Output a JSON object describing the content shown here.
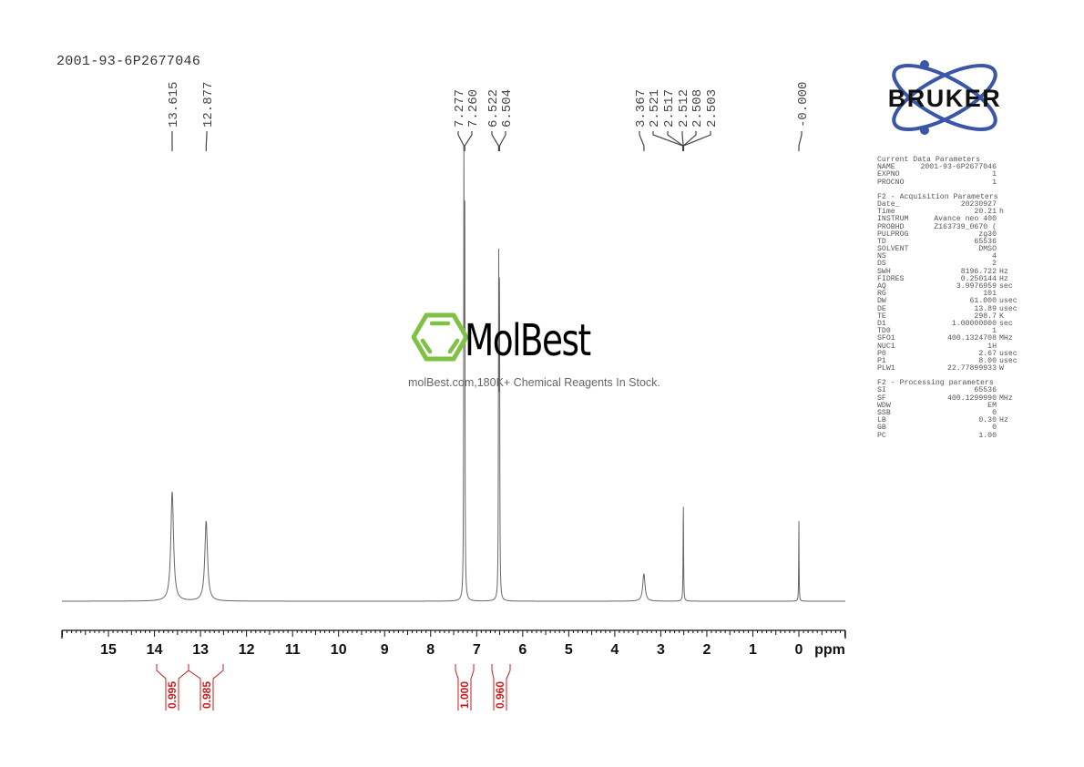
{
  "header": {
    "sample_name": "2001-93-6P2677046"
  },
  "peak_labels": [
    {
      "text": "13.615",
      "ppm": 13.615
    },
    {
      "text": "12.877",
      "ppm": 12.877
    },
    {
      "text": "7.277",
      "ppm": 7.277
    },
    {
      "text": "7.260",
      "ppm": 7.26
    },
    {
      "text": "6.522",
      "ppm": 6.522
    },
    {
      "text": "6.504",
      "ppm": 6.504
    },
    {
      "text": "3.367",
      "ppm": 3.367
    },
    {
      "text": "2.521",
      "ppm": 2.521
    },
    {
      "text": "2.517",
      "ppm": 2.517
    },
    {
      "text": "2.512",
      "ppm": 2.512
    },
    {
      "text": "2.508",
      "ppm": 2.508
    },
    {
      "text": "2.503",
      "ppm": 2.503
    },
    {
      "text": "-0.000",
      "ppm": 0.0
    }
  ],
  "axis": {
    "unit_label": "ppm",
    "ticks": [
      "15",
      "14",
      "13",
      "12",
      "11",
      "10",
      "9",
      "8",
      "7",
      "6",
      "5",
      "4",
      "3",
      "2",
      "1",
      "0"
    ]
  },
  "integrals": [
    {
      "value": "0.995",
      "from": 13.9,
      "to": 13.25
    },
    {
      "value": "0.985",
      "from": 13.25,
      "to": 12.45
    },
    {
      "value": "1.000",
      "from": 7.55,
      "to": 7.0
    },
    {
      "value": "0.960",
      "from": 6.75,
      "to": 6.3
    }
  ],
  "watermark": {
    "brand": "MolBest",
    "tagline": "molBest.com,180K+ Chemical Reagents In Stock.",
    "logo_color": "#7dc242"
  },
  "logo": {
    "text": "BRUKER",
    "orbit_color": "#3a57a7"
  },
  "parameters": {
    "current": {
      "title": "Current Data Parameters",
      "rows": [
        {
          "key": "NAME",
          "value": "2001-93-6P2677046",
          "unit": ""
        },
        {
          "key": "EXPNO",
          "value": "1",
          "unit": ""
        },
        {
          "key": "PROCNO",
          "value": "1",
          "unit": ""
        }
      ]
    },
    "acquisition": {
      "title": "F2 - Acquisition Parameters",
      "rows": [
        {
          "key": "Date_",
          "value": "20230927",
          "unit": ""
        },
        {
          "key": "Time",
          "value": "20.21",
          "unit": "h"
        },
        {
          "key": "INSTRUM",
          "value": "Avance neo 400",
          "unit": ""
        },
        {
          "key": "PROBHD",
          "value": "Z163739_0670 (",
          "unit": ""
        },
        {
          "key": "PULPROG",
          "value": "zg30",
          "unit": ""
        },
        {
          "key": "TD",
          "value": "65536",
          "unit": ""
        },
        {
          "key": "SOLVENT",
          "value": "DMSO",
          "unit": ""
        },
        {
          "key": "NS",
          "value": "4",
          "unit": ""
        },
        {
          "key": "DS",
          "value": "2",
          "unit": ""
        },
        {
          "key": "SWH",
          "value": "8196.722",
          "unit": "Hz"
        },
        {
          "key": "FIDRES",
          "value": "0.250144",
          "unit": "Hz"
        },
        {
          "key": "AQ",
          "value": "3.9976959",
          "unit": "sec"
        },
        {
          "key": "RG",
          "value": "101",
          "unit": ""
        },
        {
          "key": "DW",
          "value": "61.000",
          "unit": "usec"
        },
        {
          "key": "DE",
          "value": "13.89",
          "unit": "usec"
        },
        {
          "key": "TE",
          "value": "298.7",
          "unit": "K"
        },
        {
          "key": "D1",
          "value": "1.00000000",
          "unit": "sec"
        },
        {
          "key": "TD0",
          "value": "1",
          "unit": ""
        },
        {
          "key": "SFO1",
          "value": "400.1324708",
          "unit": "MHz"
        },
        {
          "key": "NUC1",
          "value": "1H",
          "unit": ""
        },
        {
          "key": "P0",
          "value": "2.67",
          "unit": "usec"
        },
        {
          "key": "P1",
          "value": "8.00",
          "unit": "usec"
        },
        {
          "key": "PLW1",
          "value": "22.77899933",
          "unit": "W"
        }
      ]
    },
    "processing": {
      "title": "F2 - Processing parameters",
      "rows": [
        {
          "key": "SI",
          "value": "65536",
          "unit": ""
        },
        {
          "key": "SF",
          "value": "400.1299990",
          "unit": "MHz"
        },
        {
          "key": "WDW",
          "value": "EM",
          "unit": ""
        },
        {
          "key": "SSB",
          "value": "0",
          "unit": ""
        },
        {
          "key": "LB",
          "value": "0.30",
          "unit": "Hz"
        },
        {
          "key": "GB",
          "value": "0",
          "unit": ""
        },
        {
          "key": "PC",
          "value": "1.00",
          "unit": ""
        }
      ]
    }
  },
  "chart_data": {
    "type": "line",
    "title": "2001-93-6P2677046",
    "subtitle": "1H NMR, 400 MHz, DMSO",
    "xlabel": "ppm",
    "ylabel": "",
    "xlim": [
      16.0,
      -1.0
    ],
    "x_reversed": true,
    "grid": false,
    "legend": null,
    "x_ticks": [
      15,
      14,
      13,
      12,
      11,
      10,
      9,
      8,
      7,
      6,
      5,
      4,
      3,
      2,
      1,
      0
    ],
    "peaks": [
      {
        "ppm": 13.615,
        "rel_height": 0.26,
        "width": 0.07
      },
      {
        "ppm": 12.877,
        "rel_height": 0.19,
        "width": 0.07
      },
      {
        "ppm": 7.277,
        "rel_height": 1.0,
        "width": 0.012
      },
      {
        "ppm": 7.26,
        "rel_height": 0.95,
        "width": 0.012
      },
      {
        "ppm": 6.522,
        "rel_height": 0.78,
        "width": 0.012
      },
      {
        "ppm": 6.504,
        "rel_height": 0.75,
        "width": 0.012
      },
      {
        "ppm": 3.367,
        "rel_height": 0.065,
        "width": 0.06
      },
      {
        "ppm": 2.51,
        "rel_height": 0.24,
        "width": 0.012
      },
      {
        "ppm": 0.0,
        "rel_height": 0.19,
        "width": 0.01
      }
    ],
    "integrals": [
      {
        "range": [
          13.9,
          13.25
        ],
        "value": 0.995
      },
      {
        "range": [
          13.25,
          12.45
        ],
        "value": 0.985
      },
      {
        "range": [
          7.55,
          7.0
        ],
        "value": 1.0
      },
      {
        "range": [
          6.75,
          6.3
        ],
        "value": 0.96
      }
    ],
    "annotations": [
      "13.615",
      "12.877",
      "7.277",
      "7.260",
      "6.522",
      "6.504",
      "3.367",
      "2.521",
      "2.517",
      "2.512",
      "2.508",
      "2.503",
      "-0.000"
    ]
  }
}
